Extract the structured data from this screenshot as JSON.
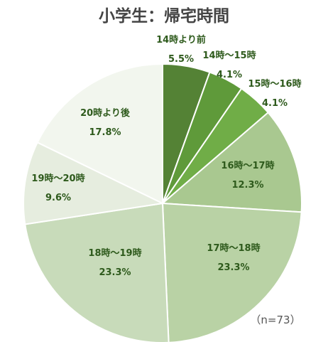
{
  "chart_data": {
    "type": "pie",
    "title": "小学生：帰宅時間",
    "note": "（n=73）",
    "slices": [
      {
        "label": "14時より前",
        "value": 5.5,
        "display": "5.5%",
        "color": "#548235",
        "text_color": "#2e5a1c"
      },
      {
        "label": "14時～15時",
        "value": 4.1,
        "display": "4.1%",
        "color": "#5f9a3a",
        "text_color": "#2e5a1c"
      },
      {
        "label": "15時～16時",
        "value": 4.1,
        "display": "4.1%",
        "color": "#70ad47",
        "text_color": "#2e5a1c"
      },
      {
        "label": "16時～17時",
        "value": 12.3,
        "display": "12.3%",
        "color": "#a9c890",
        "text_color": "#2e5a1c"
      },
      {
        "label": "17時～18時",
        "value": 23.3,
        "display": "23.3%",
        "color": "#b9d2a5",
        "text_color": "#2e5a1c"
      },
      {
        "label": "18時～19時",
        "value": 23.3,
        "display": "23.3%",
        "color": "#c8dbba",
        "text_color": "#2e5a1c"
      },
      {
        "label": "19時～20時",
        "value": 9.6,
        "display": "9.6%",
        "color": "#e6eddf",
        "text_color": "#2e5a1c"
      },
      {
        "label": "20時より後",
        "value": 17.8,
        "display": "17.8%",
        "color": "#f2f6ee",
        "text_color": "#2e5a1c"
      }
    ]
  }
}
